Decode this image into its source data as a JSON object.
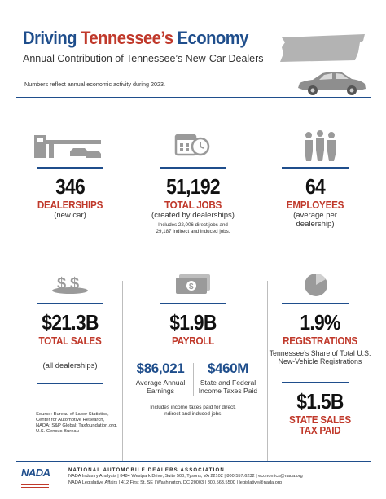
{
  "header": {
    "title_part1": "Driving",
    "title_part2": "Tennessee’s",
    "title_part3": "Economy",
    "subtitle": "Annual Contribution of Tennessee’s New-Car Dealers",
    "note": "Numbers reflect annual economic activity during 2023."
  },
  "stats": {
    "dealerships": {
      "value": "346",
      "label": "DEALERSHIPS",
      "sub": "(new car)"
    },
    "total_jobs": {
      "value": "51,192",
      "label": "TOTAL JOBS",
      "sub": "(created by dealerships)",
      "detail_line1": "Includes 22,006 direct jobs and",
      "detail_line2": "29,187 indirect and induced jobs."
    },
    "employees": {
      "value": "64",
      "label": "EMPLOYEES",
      "sub_line1": "(average per",
      "sub_line2": "dealership)"
    },
    "total_sales": {
      "value": "$21.3B",
      "label": "TOTAL SALES",
      "sub": "(all dealerships)"
    },
    "payroll": {
      "value": "$1.9B",
      "label": "PAYROLL",
      "earnings_value": "$86,021",
      "earnings_line1": "Average Annual",
      "earnings_line2": "Earnings",
      "taxes_value": "$460M",
      "taxes_line1": "State and Federal",
      "taxes_line2": "Income Taxes Paid",
      "detail_line1": "Includes income taxes paid for direct,",
      "detail_line2": "indirect and induced jobs."
    },
    "registrations": {
      "value": "1.9%",
      "label": "REGISTRATIONS",
      "sub_line1": "Tennessee’s Share of Total U.S.",
      "sub_line2": "New-Vehicle Registrations",
      "share_percent": 1.9
    },
    "sales_tax": {
      "value": "$1.5B",
      "label_line1": "STATE SALES",
      "label_line2": "TAX PAID"
    }
  },
  "sources": {
    "line1": "Source: Bureau of Labor Statistics,",
    "line2": "Center for Automotive Research,",
    "line3": "NADA; S&P Global; Taxfoundation.org,",
    "line4": "U.S. Census Bureau"
  },
  "footer": {
    "logo": "NADA",
    "org": "NATIONAL AUTOMOBILE DEALERS ASSOCIATION",
    "line1": "NADA Industry Analysis | 8484 Westpark Drive, Suite 500, Tysons, VA 22102 | 800.557.6232 | economics@nada.org",
    "line2": "NADA Legislative Affairs | 412 First St. SE | Washington, DC 20003 | 800.563.5500 | legislative@nada.org"
  },
  "icons": {
    "state": "tennessee-map-icon",
    "car": "car-icon",
    "dealership": "dealership-building-icon",
    "calendar": "calendar-clock-icon",
    "people": "people-icon",
    "money": "money-dollar-icon",
    "cash": "cash-bill-icon",
    "pie": "pie-chart-icon"
  },
  "colors": {
    "navy": "#1f4e8c",
    "red": "#c0392b",
    "gray_icon": "#9a9a9a"
  }
}
